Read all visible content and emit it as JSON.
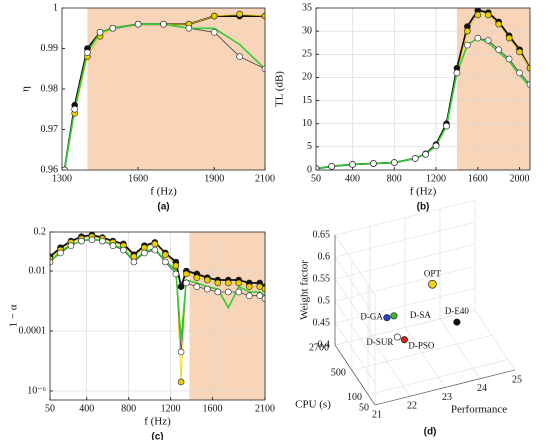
{
  "chart_data": [
    {
      "type": "line",
      "caption": "(a)",
      "xlabel": "f (Hz)",
      "ylabel": "η",
      "x": [
        1310,
        1350,
        1400,
        1450,
        1500,
        1600,
        1700,
        1800,
        1900,
        2000,
        2100
      ],
      "xlim": [
        1300,
        2100
      ],
      "xticks": [
        1300,
        1600,
        1900,
        2100
      ],
      "ylim": [
        0.96,
        1
      ],
      "yticks": [
        0.96,
        0.97,
        0.98,
        0.99,
        1
      ],
      "grid": false,
      "log_y": false,
      "shaded": [
        1400,
        2100
      ],
      "shade_color": "#f8d5b8",
      "series": [
        {
          "color": "#111111",
          "markers": true,
          "values": [
            0.96,
            0.976,
            0.99,
            0.994,
            0.995,
            0.996,
            0.996,
            0.996,
            0.998,
            0.998,
            0.998
          ]
        },
        {
          "color": "#e8d000",
          "markers": true,
          "values": [
            0.96,
            0.974,
            0.988,
            0.993,
            0.995,
            0.996,
            0.996,
            0.996,
            0.998,
            0.9985,
            0.998
          ]
        },
        {
          "color": "#ffffff",
          "markers": true,
          "values": [
            0.96,
            0.975,
            0.989,
            0.994,
            0.995,
            0.996,
            0.996,
            0.995,
            0.994,
            0.988,
            0.985
          ]
        },
        {
          "color": "#33cc33",
          "markers": false,
          "values": [
            0.96,
            0.975,
            0.989,
            0.994,
            0.995,
            0.996,
            0.996,
            0.995,
            0.995,
            0.991,
            0.985
          ]
        }
      ]
    },
    {
      "type": "line",
      "caption": "(b)",
      "xlabel": "f (Hz)",
      "ylabel": "TL (dB)",
      "x": [
        50,
        200,
        400,
        600,
        800,
        1000,
        1100,
        1200,
        1300,
        1400,
        1500,
        1600,
        1700,
        1800,
        1900,
        2000,
        2100
      ],
      "xlim": [
        50,
        2100
      ],
      "xticks": [
        50,
        400,
        800,
        1200,
        1600,
        2000
      ],
      "ylim": [
        0,
        35
      ],
      "yticks": [
        0,
        5,
        10,
        15,
        20,
        25,
        30,
        35
      ],
      "grid": true,
      "log_y": false,
      "shaded": [
        1400,
        2100
      ],
      "shade_color": "#f8d5b8",
      "series": [
        {
          "color": "#111111",
          "markers": true,
          "values": [
            0.3,
            0.8,
            1.2,
            1.4,
            1.6,
            2.5,
            3.5,
            5.5,
            10,
            22,
            31,
            34.5,
            34,
            32,
            29,
            26,
            22
          ]
        },
        {
          "color": "#e8d000",
          "markers": true,
          "values": [
            0.3,
            0.8,
            1.2,
            1.4,
            1.6,
            2.5,
            3.4,
            5.3,
            9.5,
            21,
            30,
            33.5,
            33.5,
            31.5,
            28.5,
            25.5,
            22
          ]
        },
        {
          "color": "#ffffff",
          "markers": true,
          "values": [
            0.3,
            0.8,
            1.2,
            1.4,
            1.6,
            2.5,
            3.4,
            5.2,
            9.5,
            21,
            27,
            28.5,
            28,
            26,
            24,
            21,
            18.5
          ]
        },
        {
          "color": "#33cc33",
          "markers": false,
          "values": [
            0.3,
            0.8,
            1.2,
            1.4,
            1.6,
            2.5,
            3.4,
            5.2,
            9.5,
            21,
            27,
            28.5,
            27.5,
            25.5,
            23.5,
            20.5,
            18
          ]
        }
      ]
    },
    {
      "type": "line",
      "caption": "(c)",
      "xlabel": "f (Hz)",
      "ylabel": "1 − α",
      "x": [
        50,
        150,
        250,
        350,
        450,
        550,
        650,
        750,
        850,
        950,
        1050,
        1150,
        1250,
        1300,
        1350,
        1450,
        1550,
        1650,
        1750,
        1850,
        1950,
        2050,
        2100
      ],
      "xlim": [
        50,
        2100
      ],
      "xticks": [
        50,
        400,
        800,
        1200,
        1600,
        2100
      ],
      "ylim": [
        5e-07,
        0.2
      ],
      "yticks": [
        {
          "value": 1e-06,
          "label": "10⁻⁶"
        },
        0.0001,
        0.01,
        0.2
      ],
      "grid": true,
      "log_y": true,
      "shaded": [
        1380,
        2100
      ],
      "shade_color": "#f8d5b8",
      "series": [
        {
          "color": "#111111",
          "markers": true,
          "values": [
            0.03,
            0.06,
            0.1,
            0.14,
            0.16,
            0.13,
            0.1,
            0.08,
            0.035,
            0.07,
            0.09,
            0.04,
            0.02,
            0.003,
            0.01,
            0.008,
            0.006,
            0.005,
            0.005,
            0.005,
            0.004,
            0.004,
            0.003
          ]
        },
        {
          "color": "#e8d000",
          "markers": true,
          "values": [
            0.025,
            0.05,
            0.09,
            0.12,
            0.14,
            0.12,
            0.09,
            0.07,
            0.03,
            0.06,
            0.08,
            0.035,
            0.015,
            2e-06,
            0.008,
            0.006,
            0.005,
            0.004,
            0.004,
            0.004,
            0.003,
            0.003,
            0.0025
          ]
        },
        {
          "color": "#ffffff",
          "markers": true,
          "values": [
            0.02,
            0.04,
            0.07,
            0.1,
            0.11,
            0.1,
            0.07,
            0.05,
            0.02,
            0.04,
            0.05,
            0.02,
            0.008,
            2e-05,
            0.004,
            0.003,
            0.0025,
            0.002,
            0.002,
            0.002,
            0.0015,
            0.0015,
            0.0012
          ]
        },
        {
          "color": "#33cc33",
          "markers": false,
          "values": [
            0.02,
            0.045,
            0.075,
            0.1,
            0.12,
            0.1,
            0.075,
            0.055,
            0.022,
            0.045,
            0.055,
            0.022,
            0.01,
            5e-05,
            0.005,
            0.004,
            0.003,
            0.0025,
            0.0006,
            0.003,
            0.002,
            0.002,
            0.0015
          ]
        }
      ]
    },
    {
      "type": "scatter3d",
      "caption": "(d)",
      "xlabel": "Performance",
      "ylabel": "CPU (s)",
      "zlabel": "Weight factor",
      "xlim": [
        21,
        25
      ],
      "xticks": [
        21,
        22,
        23,
        24,
        25
      ],
      "ylim": [
        50,
        2700
      ],
      "yticks": [
        50,
        100,
        500,
        2700
      ],
      "log_y": true,
      "zlim": [
        0.4,
        0.65
      ],
      "zticks": [
        0.4,
        0.45,
        0.5,
        0.55,
        0.6,
        0.65
      ],
      "points": [
        {
          "name": "OPT",
          "color": "#f2d21b",
          "x": 23.3,
          "y": 500,
          "z": 0.55
        },
        {
          "name": "D-GA",
          "color": "#2244cc",
          "x": 22,
          "y": 500,
          "z": 0.5
        },
        {
          "name": "D-SA",
          "color": "#33bb33",
          "x": 22.2,
          "y": 500,
          "z": 0.5
        },
        {
          "name": "D-SUR",
          "color": "#ffffff",
          "x": 22.3,
          "y": 500,
          "z": 0.45
        },
        {
          "name": "D-PSO",
          "color": "#dd2222",
          "x": 22.5,
          "y": 500,
          "z": 0.44
        },
        {
          "name": "D-E40",
          "color": "#111111",
          "x": 24,
          "y": 500,
          "z": 0.45
        }
      ]
    }
  ]
}
